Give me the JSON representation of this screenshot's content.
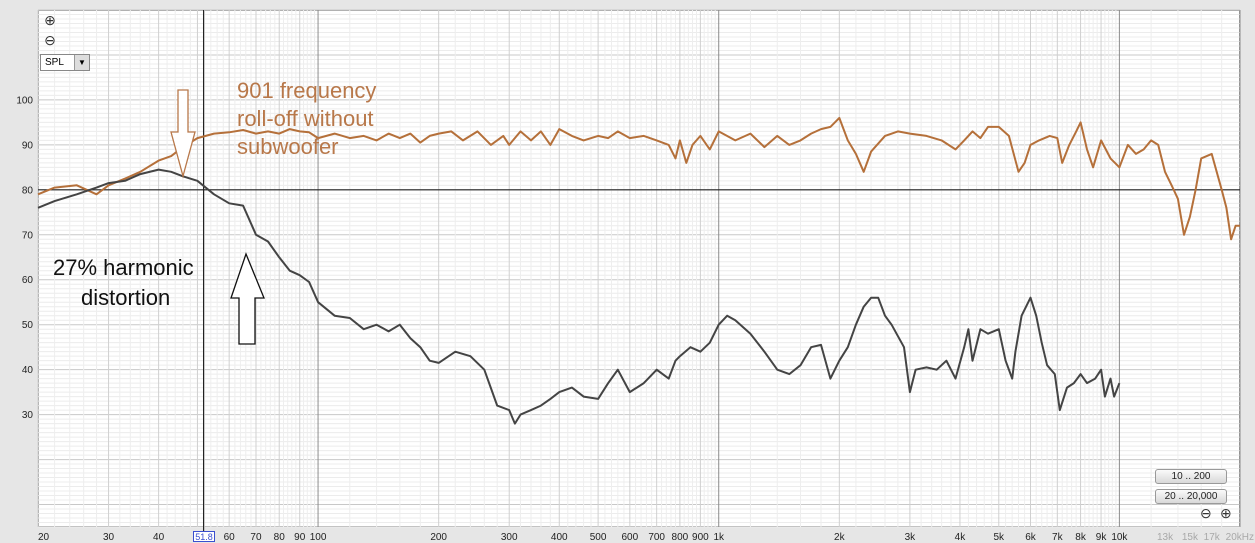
{
  "controls": {
    "zoom_in_icon": "⊕",
    "zoom_out_icon": "⊖",
    "measurement_select": "SPL",
    "range_buttons": [
      "10 .. 200",
      "20 .. 20,000"
    ],
    "cursor_value": "51.8"
  },
  "chart_data": {
    "type": "line",
    "title": "",
    "xlabel": "",
    "ylabel": "",
    "x_scale": "log",
    "xlim": [
      20,
      20000
    ],
    "ylim": [
      5,
      120
    ],
    "y_ticks": [
      100,
      90,
      80,
      70,
      60,
      50,
      40,
      30
    ],
    "x_tick_labels": [
      {
        "f": 20,
        "label": "20"
      },
      {
        "f": 30,
        "label": "30"
      },
      {
        "f": 40,
        "label": "40"
      },
      {
        "f": 60,
        "label": "60"
      },
      {
        "f": 70,
        "label": "70"
      },
      {
        "f": 80,
        "label": "80"
      },
      {
        "f": 90,
        "label": "90"
      },
      {
        "f": 100,
        "label": "100"
      },
      {
        "f": 200,
        "label": "200"
      },
      {
        "f": 300,
        "label": "300"
      },
      {
        "f": 400,
        "label": "400"
      },
      {
        "f": 500,
        "label": "500"
      },
      {
        "f": 600,
        "label": "600"
      },
      {
        "f": 700,
        "label": "700"
      },
      {
        "f": 800,
        "label": "800"
      },
      {
        "f": 900,
        "label": "900"
      },
      {
        "f": 1000,
        "label": "1k"
      },
      {
        "f": 2000,
        "label": "2k"
      },
      {
        "f": 3000,
        "label": "3k"
      },
      {
        "f": 4000,
        "label": "4k"
      },
      {
        "f": 5000,
        "label": "5k"
      },
      {
        "f": 6000,
        "label": "6k"
      },
      {
        "f": 7000,
        "label": "7k"
      },
      {
        "f": 8000,
        "label": "8k"
      },
      {
        "f": 9000,
        "label": "9k"
      },
      {
        "f": 10000,
        "label": "10k"
      }
    ],
    "x_tick_labels_faded": [
      {
        "f": 13000,
        "label": "13k"
      },
      {
        "f": 15000,
        "label": "15k"
      },
      {
        "f": 17000,
        "label": "17k"
      },
      {
        "f": 20000,
        "label": "20kHz"
      }
    ],
    "reference_line_y": 80,
    "cursor_frequency": 51.8,
    "colors": {
      "series_1": "#b5703a",
      "series_2": "#444444",
      "annotation_orange": "#b8784a"
    },
    "series": [
      {
        "color": "#b5703a",
        "points": [
          [
            20,
            79
          ],
          [
            22,
            80.5
          ],
          [
            25,
            81
          ],
          [
            28,
            79
          ],
          [
            30,
            81
          ],
          [
            33,
            82.5
          ],
          [
            36,
            84
          ],
          [
            40,
            86.5
          ],
          [
            43,
            87.5
          ],
          [
            46,
            89.5
          ],
          [
            50,
            91.5
          ],
          [
            55,
            92.5
          ],
          [
            60,
            92.8
          ],
          [
            65,
            93.3
          ],
          [
            70,
            92.5
          ],
          [
            75,
            93
          ],
          [
            80,
            92.5
          ],
          [
            85,
            93.5
          ],
          [
            90,
            93
          ],
          [
            95,
            92.8
          ],
          [
            100,
            91.5
          ],
          [
            110,
            92.5
          ],
          [
            120,
            91.5
          ],
          [
            130,
            92
          ],
          [
            140,
            91
          ],
          [
            150,
            92.5
          ],
          [
            160,
            91.5
          ],
          [
            170,
            92.5
          ],
          [
            180,
            90.5
          ],
          [
            190,
            92
          ],
          [
            200,
            92.5
          ],
          [
            215,
            93
          ],
          [
            230,
            91
          ],
          [
            250,
            93
          ],
          [
            270,
            90
          ],
          [
            290,
            92
          ],
          [
            300,
            90
          ],
          [
            320,
            93
          ],
          [
            340,
            91
          ],
          [
            360,
            93
          ],
          [
            380,
            90
          ],
          [
            400,
            93.5
          ],
          [
            430,
            92
          ],
          [
            460,
            91
          ],
          [
            500,
            92
          ],
          [
            530,
            91.5
          ],
          [
            560,
            93
          ],
          [
            600,
            91.5
          ],
          [
            650,
            92
          ],
          [
            700,
            91
          ],
          [
            750,
            90
          ],
          [
            780,
            87
          ],
          [
            800,
            91
          ],
          [
            830,
            86
          ],
          [
            860,
            90
          ],
          [
            900,
            92
          ],
          [
            950,
            89
          ],
          [
            1000,
            93
          ],
          [
            1100,
            91
          ],
          [
            1200,
            92.5
          ],
          [
            1300,
            89.5
          ],
          [
            1400,
            92
          ],
          [
            1500,
            90
          ],
          [
            1600,
            91
          ],
          [
            1700,
            92.5
          ],
          [
            1800,
            93.5
          ],
          [
            1900,
            94
          ],
          [
            2000,
            96
          ],
          [
            2100,
            91
          ],
          [
            2200,
            88
          ],
          [
            2300,
            84
          ],
          [
            2400,
            88.5
          ],
          [
            2600,
            92
          ],
          [
            2800,
            93
          ],
          [
            3000,
            92.5
          ],
          [
            3300,
            92
          ],
          [
            3600,
            91
          ],
          [
            3900,
            89
          ],
          [
            4100,
            91
          ],
          [
            4300,
            93
          ],
          [
            4500,
            91.5
          ],
          [
            4700,
            94
          ],
          [
            5000,
            94
          ],
          [
            5300,
            92
          ],
          [
            5600,
            84
          ],
          [
            5800,
            86
          ],
          [
            6000,
            90
          ],
          [
            6300,
            91
          ],
          [
            6700,
            92
          ],
          [
            7000,
            91.5
          ],
          [
            7200,
            86
          ],
          [
            7500,
            90
          ],
          [
            7800,
            93
          ],
          [
            8000,
            95
          ],
          [
            8300,
            89
          ],
          [
            8600,
            85
          ],
          [
            9000,
            91
          ],
          [
            9500,
            87
          ],
          [
            10000,
            85
          ],
          [
            10500,
            90
          ],
          [
            11000,
            88
          ],
          [
            11500,
            89
          ],
          [
            12000,
            91
          ],
          [
            12500,
            90
          ],
          [
            13000,
            84
          ],
          [
            13500,
            81
          ],
          [
            14000,
            78
          ],
          [
            14500,
            70
          ],
          [
            15000,
            74
          ],
          [
            15500,
            80
          ],
          [
            16000,
            87
          ],
          [
            17000,
            88
          ],
          [
            18000,
            80
          ],
          [
            18500,
            76
          ],
          [
            19000,
            69
          ],
          [
            19500,
            72
          ],
          [
            20000,
            72
          ]
        ]
      },
      {
        "color": "#444444",
        "points": [
          [
            20,
            76
          ],
          [
            22,
            77.5
          ],
          [
            25,
            79
          ],
          [
            28,
            80.5
          ],
          [
            30,
            81.5
          ],
          [
            33,
            82
          ],
          [
            36,
            83.5
          ],
          [
            40,
            84.5
          ],
          [
            43,
            84
          ],
          [
            46,
            83
          ],
          [
            50,
            82
          ],
          [
            55,
            79
          ],
          [
            60,
            77
          ],
          [
            65,
            76.5
          ],
          [
            70,
            70
          ],
          [
            75,
            68.5
          ],
          [
            80,
            65
          ],
          [
            85,
            62
          ],
          [
            90,
            61
          ],
          [
            95,
            59.5
          ],
          [
            100,
            55
          ],
          [
            110,
            52
          ],
          [
            120,
            51.5
          ],
          [
            130,
            49
          ],
          [
            140,
            50
          ],
          [
            150,
            48.5
          ],
          [
            160,
            50
          ],
          [
            170,
            47
          ],
          [
            180,
            45
          ],
          [
            190,
            42
          ],
          [
            200,
            41.5
          ],
          [
            220,
            44
          ],
          [
            240,
            43
          ],
          [
            260,
            40
          ],
          [
            280,
            32
          ],
          [
            300,
            31
          ],
          [
            310,
            28
          ],
          [
            320,
            30
          ],
          [
            340,
            31
          ],
          [
            360,
            32
          ],
          [
            380,
            33.5
          ],
          [
            400,
            35
          ],
          [
            430,
            36
          ],
          [
            460,
            34
          ],
          [
            500,
            33.5
          ],
          [
            530,
            37
          ],
          [
            560,
            40
          ],
          [
            600,
            35
          ],
          [
            650,
            37
          ],
          [
            700,
            40
          ],
          [
            750,
            38
          ],
          [
            780,
            42
          ],
          [
            800,
            43
          ],
          [
            850,
            45
          ],
          [
            900,
            44
          ],
          [
            950,
            46
          ],
          [
            1000,
            50
          ],
          [
            1050,
            52
          ],
          [
            1100,
            51
          ],
          [
            1200,
            48
          ],
          [
            1300,
            44
          ],
          [
            1400,
            40
          ],
          [
            1500,
            39
          ],
          [
            1600,
            41
          ],
          [
            1700,
            45
          ],
          [
            1800,
            45.5
          ],
          [
            1900,
            38
          ],
          [
            2000,
            42
          ],
          [
            2100,
            45
          ],
          [
            2200,
            50
          ],
          [
            2300,
            54
          ],
          [
            2400,
            56
          ],
          [
            2500,
            56
          ],
          [
            2600,
            52
          ],
          [
            2700,
            50
          ],
          [
            2900,
            45
          ],
          [
            3000,
            35
          ],
          [
            3100,
            40
          ],
          [
            3300,
            40.5
          ],
          [
            3500,
            40
          ],
          [
            3700,
            42
          ],
          [
            3900,
            38
          ],
          [
            4100,
            45
          ],
          [
            4200,
            49
          ],
          [
            4300,
            42
          ],
          [
            4500,
            49
          ],
          [
            4700,
            48
          ],
          [
            5000,
            49
          ],
          [
            5200,
            42
          ],
          [
            5400,
            38
          ],
          [
            5500,
            44
          ],
          [
            5700,
            52
          ],
          [
            6000,
            56
          ],
          [
            6200,
            52
          ],
          [
            6400,
            46
          ],
          [
            6600,
            41
          ],
          [
            6900,
            39
          ],
          [
            7100,
            31
          ],
          [
            7400,
            36
          ],
          [
            7700,
            37
          ],
          [
            8000,
            39
          ],
          [
            8300,
            37
          ],
          [
            8700,
            38
          ],
          [
            9000,
            40
          ],
          [
            9200,
            34
          ],
          [
            9500,
            38
          ],
          [
            9700,
            34
          ],
          [
            10000,
            37
          ]
        ]
      }
    ],
    "annotations": [
      {
        "text_lines": [
          "901 frequency",
          "roll-off without",
          "subwoofer"
        ],
        "color": "orange"
      },
      {
        "text_lines": [
          "27% harmonic",
          "distortion"
        ],
        "color": "black"
      }
    ]
  }
}
